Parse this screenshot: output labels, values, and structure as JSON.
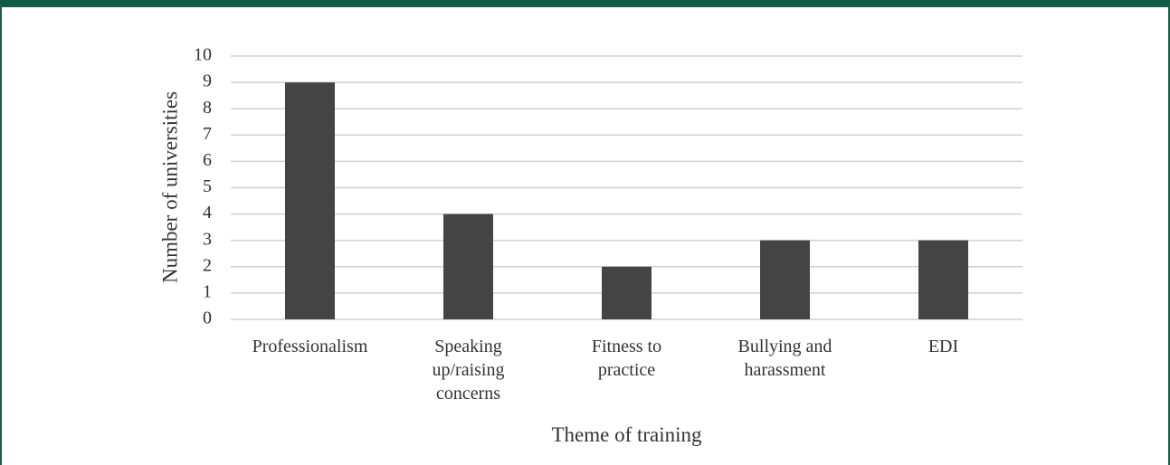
{
  "chart_data": {
    "type": "bar",
    "x_label": "Theme of training",
    "y_label": "Number of universities",
    "categories": [
      "Professionalism",
      "Speaking up/raising concerns",
      "Fitness to practice",
      "Bullying and harassment",
      "EDI"
    ],
    "values": [
      9,
      4,
      2,
      3,
      3
    ],
    "color": "#444444",
    "ylim": [
      0,
      10
    ],
    "yticks": [
      0,
      1,
      2,
      3,
      4,
      5,
      6,
      7,
      8,
      9,
      10
    ],
    "grid": true
  }
}
